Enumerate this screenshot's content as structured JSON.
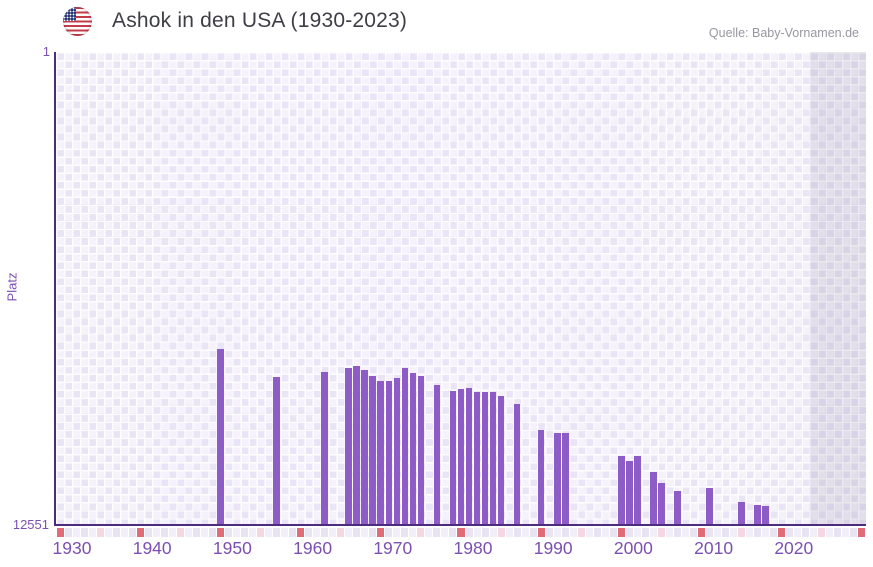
{
  "header": {
    "title": "Ashok in den USA (1930-2023)",
    "source": "Quelle: Baby-Vornamen.de"
  },
  "chart_data": {
    "type": "bar",
    "title": "Ashok in den USA (1930-2023)",
    "xlabel": "",
    "ylabel": "Platz",
    "legend": "none",
    "grid": "checkerboard",
    "y_axis": {
      "min_label": "1",
      "max_label": "12551",
      "min": 1,
      "max": 12551,
      "inverted": true,
      "scale": "linear"
    },
    "x_axis": {
      "plot_start_year": 1928,
      "plot_end_year": 2028,
      "tick_years": [
        1930,
        1940,
        1950,
        1960,
        1970,
        1980,
        1990,
        2000,
        2010,
        2020
      ]
    },
    "no_data_band_from_year": 2022,
    "series": [
      {
        "name": "Platz",
        "points": [
          {
            "year": 1948,
            "rank": 7900
          },
          {
            "year": 1955,
            "rank": 8650
          },
          {
            "year": 1961,
            "rank": 8520
          },
          {
            "year": 1964,
            "rank": 8390
          },
          {
            "year": 1965,
            "rank": 8360
          },
          {
            "year": 1966,
            "rank": 8460
          },
          {
            "year": 1967,
            "rank": 8620
          },
          {
            "year": 1968,
            "rank": 8760
          },
          {
            "year": 1969,
            "rank": 8760
          },
          {
            "year": 1970,
            "rank": 8680
          },
          {
            "year": 1971,
            "rank": 8410
          },
          {
            "year": 1972,
            "rank": 8540
          },
          {
            "year": 1973,
            "rank": 8620
          },
          {
            "year": 1975,
            "rank": 8860
          },
          {
            "year": 1977,
            "rank": 9020
          },
          {
            "year": 1978,
            "rank": 8970
          },
          {
            "year": 1979,
            "rank": 8940
          },
          {
            "year": 1980,
            "rank": 9040
          },
          {
            "year": 1981,
            "rank": 9040
          },
          {
            "year": 1982,
            "rank": 9040
          },
          {
            "year": 1983,
            "rank": 9150
          },
          {
            "year": 1985,
            "rank": 9370
          },
          {
            "year": 1988,
            "rank": 10050
          },
          {
            "year": 1990,
            "rank": 10140
          },
          {
            "year": 1991,
            "rank": 10140
          },
          {
            "year": 1998,
            "rank": 10740
          },
          {
            "year": 1999,
            "rank": 10870
          },
          {
            "year": 2000,
            "rank": 10740
          },
          {
            "year": 2002,
            "rank": 11180
          },
          {
            "year": 2003,
            "rank": 11460
          },
          {
            "year": 2005,
            "rank": 11670
          },
          {
            "year": 2009,
            "rank": 11600
          },
          {
            "year": 2013,
            "rank": 11960
          },
          {
            "year": 2015,
            "rank": 12050
          },
          {
            "year": 2016,
            "rank": 12080
          }
        ]
      }
    ],
    "colors": {
      "bar": "#8e5cc6",
      "axis_line": "#4e2b7e",
      "tick_label": "#7b50b2",
      "grid_cell_light": "#f5f2fc",
      "grid_cell_dark": "#eae5f6",
      "strip_base_light": "#f2eff9",
      "strip_base_dark": "#e9e4f3",
      "strip_marker_decade": "#e06c78",
      "strip_marker_half_decade": "#f4d7e1",
      "future_band_overlay": "rgba(92,86,112,0.12)",
      "title_color": "#3e3e47",
      "source_color": "#97979f"
    }
  }
}
